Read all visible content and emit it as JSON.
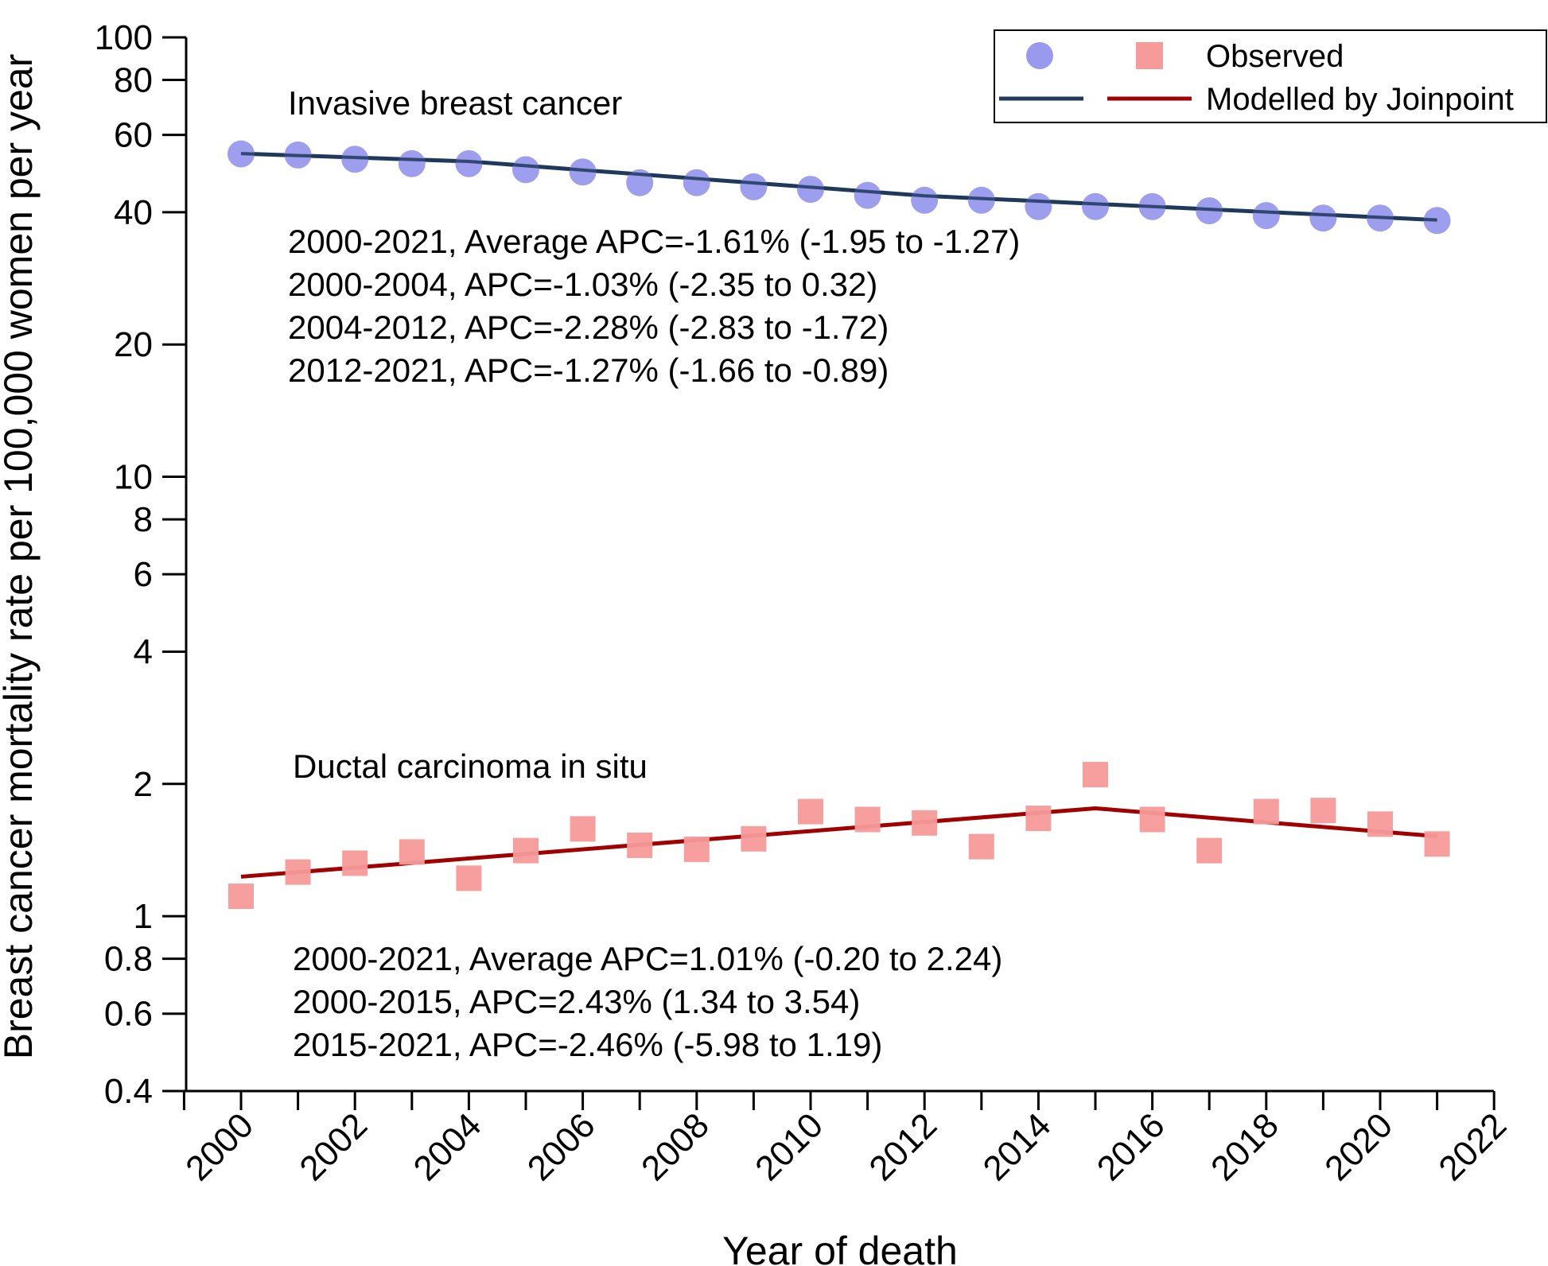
{
  "chart_data": {
    "type": "line",
    "xlabel": "Year of death",
    "ylabel": "Breast cancer mortality rate per 100,000 women per year",
    "y_scale": "log",
    "ylim": [
      0.4,
      100
    ],
    "xlim": [
      1999,
      2022
    ],
    "x_ticks": [
      2000,
      2002,
      2004,
      2006,
      2008,
      2010,
      2012,
      2014,
      2016,
      2018,
      2020,
      2022
    ],
    "x_tick_labels": [
      "2000",
      "2002",
      "2004",
      "2006",
      "2008",
      "2010",
      "2012",
      "2014",
      "2016",
      "2018",
      "2020",
      "2022"
    ],
    "y_ticks": [
      0.4,
      0.6,
      0.8,
      1,
      2,
      4,
      6,
      8,
      10,
      20,
      40,
      60,
      80,
      100
    ],
    "y_tick_labels": [
      "0.4",
      "0.6",
      "0.8",
      "1",
      "2",
      "4",
      "6",
      "8",
      "10",
      "20",
      "40",
      "60",
      "80",
      "100"
    ],
    "grid": false,
    "legend": {
      "position": "top-right",
      "observed_label": "Observed",
      "modelled_label": "Modelled by Joinpoint"
    },
    "series": [
      {
        "group": "Invasive breast cancer",
        "kind": "observed",
        "marker": "circle",
        "color": "#9999EE",
        "x": [
          2000,
          2001,
          2002,
          2003,
          2004,
          2005,
          2006,
          2007,
          2008,
          2009,
          2010,
          2011,
          2012,
          2013,
          2014,
          2015,
          2016,
          2017,
          2018,
          2019,
          2020,
          2021
        ],
        "y": [
          54.3,
          54.0,
          52.8,
          51.6,
          51.6,
          50.0,
          49.4,
          46.7,
          46.7,
          45.7,
          45.1,
          43.7,
          42.6,
          42.6,
          41.2,
          41.2,
          41.2,
          40.3,
          39.3,
          38.8,
          38.8,
          38.3
        ]
      },
      {
        "group": "Invasive breast cancer",
        "kind": "modelled",
        "color": "#203A5C",
        "x": [
          2000,
          2004,
          2012,
          2021
        ],
        "y": [
          54.4,
          52.2,
          43.6,
          38.4
        ]
      },
      {
        "group": "Ductal carcinoma in situ",
        "kind": "observed",
        "marker": "square",
        "color": "#F79A9A",
        "x": [
          2000,
          2001,
          2002,
          2003,
          2004,
          2005,
          2006,
          2007,
          2008,
          2009,
          2010,
          2011,
          2012,
          2013,
          2014,
          2015,
          2016,
          2017,
          2018,
          2019,
          2020,
          2021
        ],
        "y": [
          1.11,
          1.26,
          1.32,
          1.4,
          1.22,
          1.41,
          1.58,
          1.45,
          1.42,
          1.5,
          1.73,
          1.66,
          1.63,
          1.44,
          1.67,
          2.1,
          1.66,
          1.41,
          1.73,
          1.74,
          1.62,
          1.46
        ]
      },
      {
        "group": "Ductal carcinoma in situ",
        "kind": "modelled",
        "color": "#A00000",
        "x": [
          2000,
          2015,
          2021
        ],
        "y": [
          1.23,
          1.76,
          1.52
        ]
      }
    ],
    "annotations": {
      "invasive": {
        "title": "Invasive breast cancer",
        "lines": [
          "2000-2021, Average APC=-1.61% (-1.95 to -1.27)",
          "2000-2004, APC=-1.03% (-2.35 to 0.32)",
          "2004-2012, APC=-2.28% (-2.83 to -1.72)",
          "2012-2021, APC=-1.27% (-1.66 to -0.89)"
        ]
      },
      "dcis": {
        "title": "Ductal carcinoma in situ",
        "lines": [
          "2000-2021, Average APC=1.01% (-0.20 to 2.24)",
          "2000-2015, APC=2.43% (1.34 to 3.54)",
          "2015-2021, APC=-2.46% (-5.98 to 1.19)"
        ]
      }
    }
  }
}
